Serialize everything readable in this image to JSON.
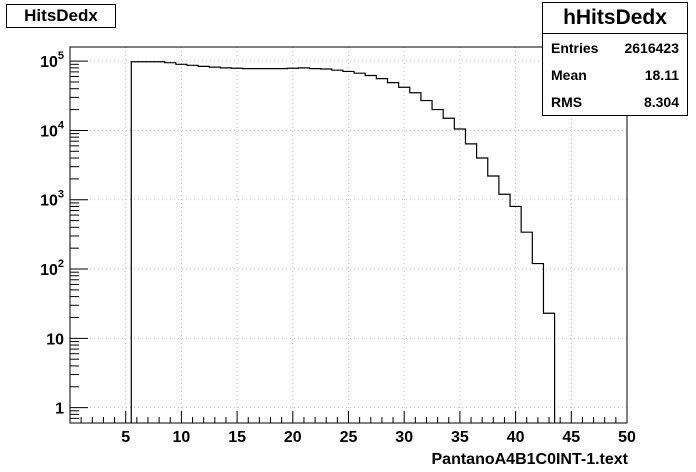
{
  "histogram": {
    "title": "HitsDedx",
    "stats": {
      "name": "hHitsDedx",
      "rows": [
        {
          "label": "Entries",
          "value": "2616423"
        },
        {
          "label": "Mean",
          "value": "18.11"
        },
        {
          "label": "RMS",
          "value": "8.304"
        }
      ]
    }
  },
  "chart_data": {
    "type": "bar",
    "title": "HitsDedx",
    "xlabel": "PantanoA4B1C0INT-1.text",
    "ylabel": "",
    "xlim": [
      0,
      50
    ],
    "ylim": [
      0.6,
      160000
    ],
    "yscale": "log",
    "grid": true,
    "x_ticks": [
      5,
      10,
      15,
      20,
      25,
      30,
      35,
      40,
      45,
      50
    ],
    "y_ticks": [
      {
        "value": 1,
        "base": "1",
        "exp": ""
      },
      {
        "value": 10,
        "base": "10",
        "exp": ""
      },
      {
        "value": 100,
        "base": "10",
        "exp": "2"
      },
      {
        "value": 1000,
        "base": "10",
        "exp": "3"
      },
      {
        "value": 10000,
        "base": "10",
        "exp": "4"
      },
      {
        "value": 100000,
        "base": "10",
        "exp": "5"
      }
    ],
    "bin_width": 1,
    "bin_start": 5.5,
    "values": [
      98000,
      98000,
      98000,
      95000,
      90000,
      87000,
      84000,
      82000,
      80000,
      79000,
      78000,
      78000,
      78000,
      78000,
      79000,
      80000,
      78000,
      77000,
      74000,
      71000,
      67000,
      62000,
      56000,
      49000,
      42000,
      35000,
      27000,
      20000,
      15000,
      10500,
      6400,
      4000,
      2200,
      1200,
      800,
      340,
      120,
      23
    ]
  }
}
